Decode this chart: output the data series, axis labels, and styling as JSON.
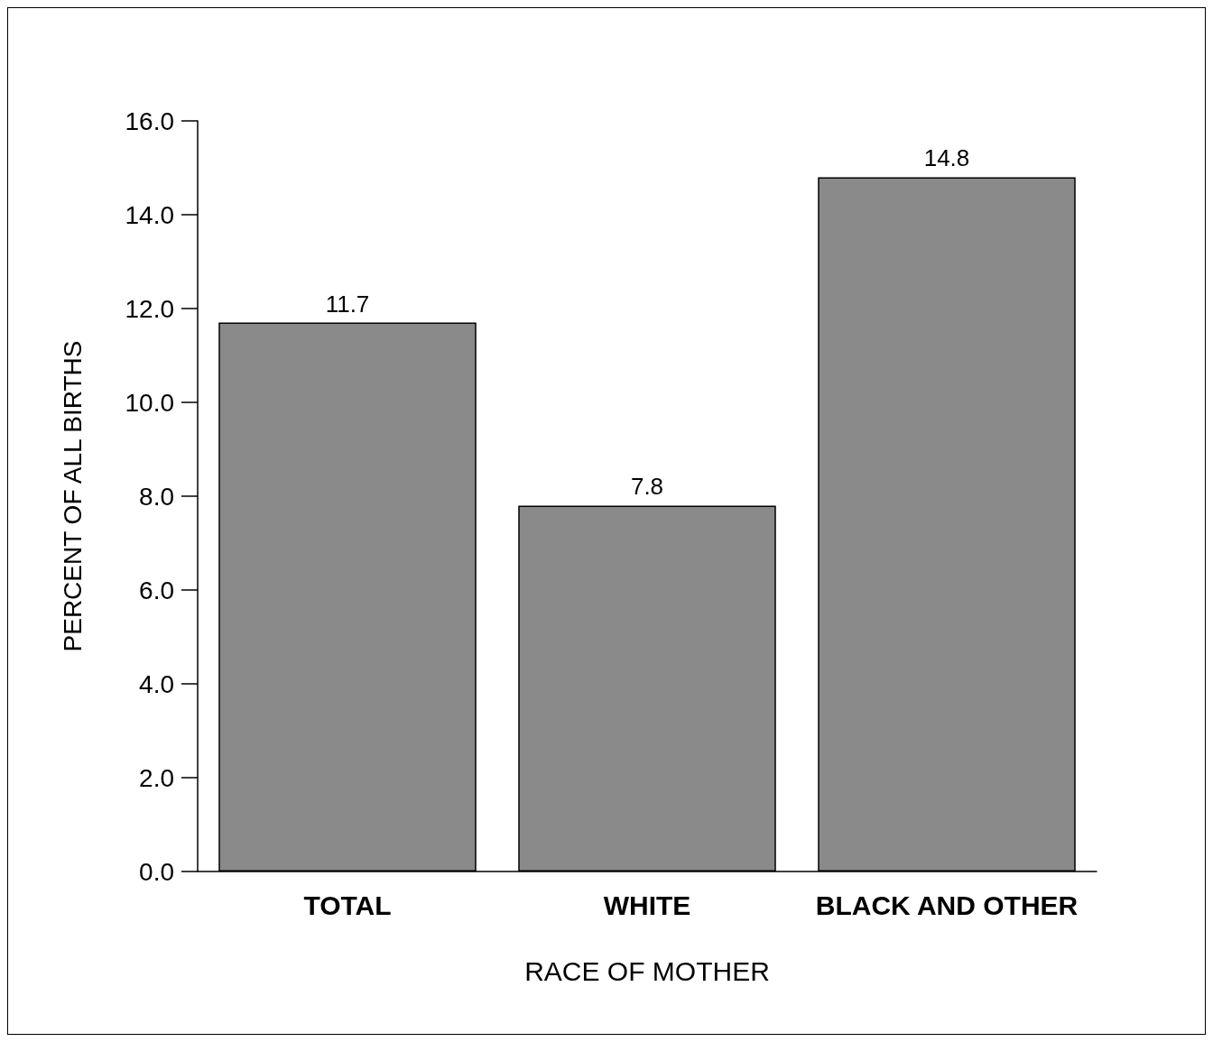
{
  "chart_data": {
    "type": "bar",
    "xlabel": "RACE OF MOTHER",
    "ylabel": "PERCENT OF ALL BIRTHS",
    "categories": [
      "TOTAL",
      "WHITE",
      "BLACK AND OTHER"
    ],
    "values": [
      11.7,
      7.8,
      14.8
    ],
    "color": "#8a8a8a",
    "ylim": [
      0,
      16
    ],
    "yticks": [
      {
        "value": 0,
        "label": "0.0"
      },
      {
        "value": 2,
        "label": "2.0"
      },
      {
        "value": 4,
        "label": "4.0"
      },
      {
        "value": 6,
        "label": "6.0"
      },
      {
        "value": 8,
        "label": "8.0"
      },
      {
        "value": 10,
        "label": "10.0"
      },
      {
        "value": 12,
        "label": "12.0"
      },
      {
        "value": 14,
        "label": "14.0"
      },
      {
        "value": 16,
        "label": "16.0"
      }
    ],
    "data_labels": true,
    "grid": false
  }
}
